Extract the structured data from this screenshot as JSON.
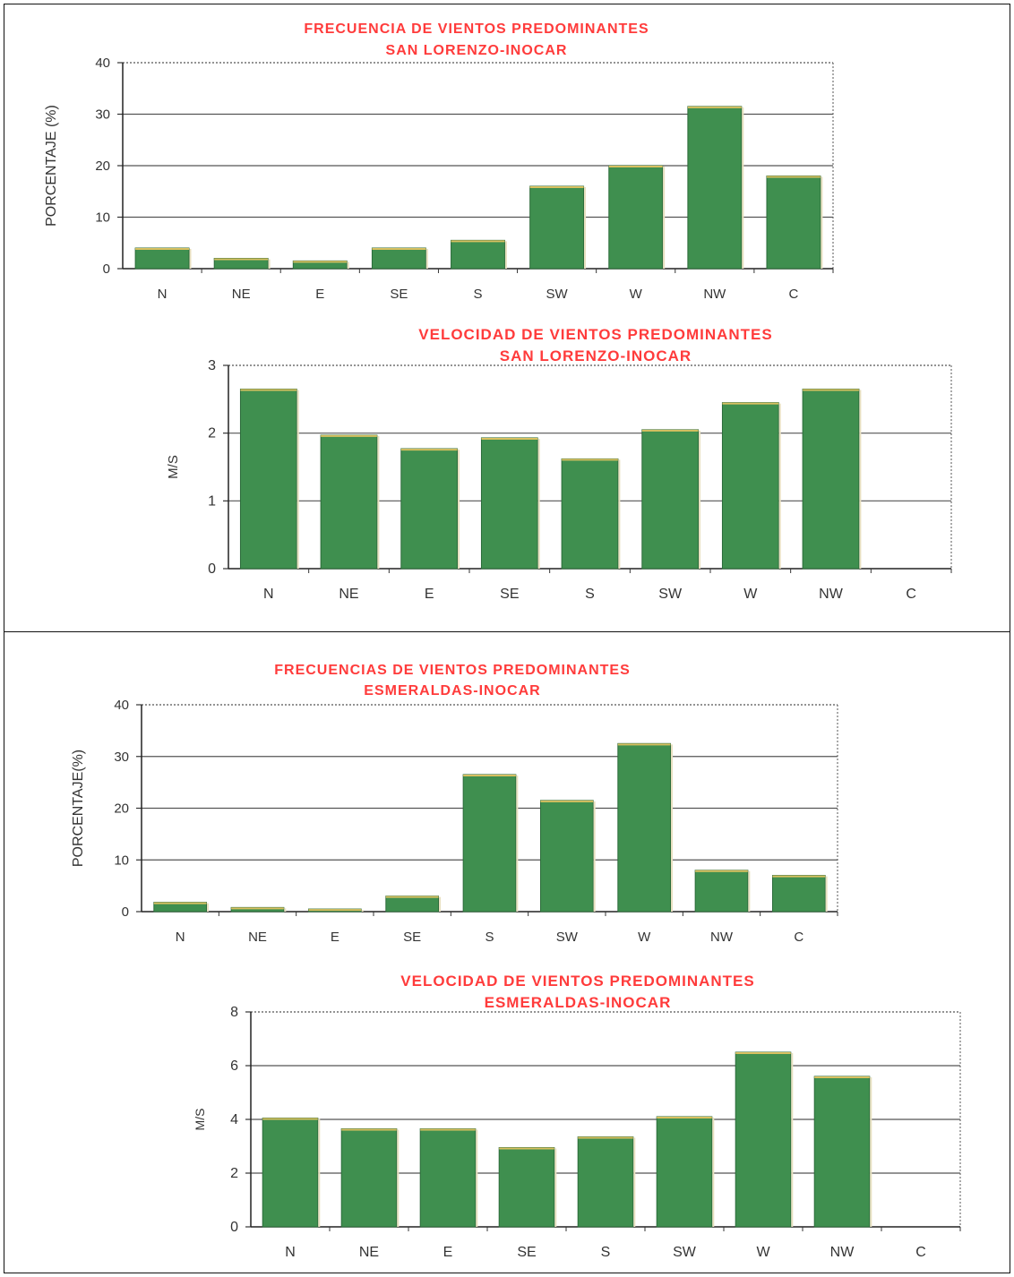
{
  "colors": {
    "bar": "#3f8f4f",
    "bar_edge": "#2c6b3a",
    "bar_highlight": "#d8c060",
    "title": "#ff3b3b",
    "grid": "#555555"
  },
  "chart_data": [
    {
      "type": "bar",
      "title": "FRECUENCIA DE VIENTOS PREDOMINANTES",
      "subtitle": "SAN LORENZO-INOCAR",
      "ylabel": "PORCENTAJE (%)",
      "xlabel": "",
      "categories": [
        "N",
        "NE",
        "E",
        "SE",
        "S",
        "SW",
        "W",
        "NW",
        "C"
      ],
      "values": [
        4,
        2,
        1.5,
        4,
        5.5,
        16,
        20,
        31.5,
        18
      ],
      "ylim": [
        0,
        40
      ],
      "yticks": [
        "0",
        "10",
        "20",
        "30",
        "40"
      ],
      "grid": true
    },
    {
      "type": "bar",
      "title": "VELOCIDAD DE VIENTOS PREDOMINANTES",
      "subtitle": "SAN LORENZO-INOCAR",
      "ylabel": "M/S",
      "xlabel": "",
      "categories": [
        "N",
        "NE",
        "E",
        "SE",
        "S",
        "SW",
        "W",
        "NW",
        "C"
      ],
      "values": [
        2.65,
        1.97,
        1.77,
        1.93,
        1.62,
        2.05,
        2.45,
        2.65,
        0
      ],
      "ylim": [
        0,
        3
      ],
      "yticks": [
        "0",
        "1",
        "2",
        "3"
      ],
      "grid": true
    },
    {
      "type": "bar",
      "title": "FRECUENCIAS DE VIENTOS PREDOMINANTES",
      "subtitle": "ESMERALDAS-INOCAR",
      "ylabel": "PORCENTAJE(%)",
      "xlabel": "",
      "categories": [
        "N",
        "NE",
        "E",
        "SE",
        "S",
        "SW",
        "W",
        "NW",
        "C"
      ],
      "values": [
        1.8,
        0.8,
        0.5,
        3,
        26.5,
        21.5,
        32.5,
        8,
        7
      ],
      "ylim": [
        0,
        40
      ],
      "yticks": [
        "0",
        "10",
        "20",
        "30",
        "40"
      ],
      "grid": true
    },
    {
      "type": "bar",
      "title": "VELOCIDAD DE VIENTOS PREDOMINANTES",
      "subtitle": "ESMERALDAS-INOCAR",
      "ylabel": "M/S",
      "xlabel": "",
      "categories": [
        "N",
        "NE",
        "E",
        "SE",
        "S",
        "SW",
        "W",
        "NW",
        "C"
      ],
      "values": [
        4.05,
        3.65,
        3.65,
        2.95,
        3.35,
        4.1,
        6.5,
        5.6,
        0
      ],
      "ylim": [
        0,
        8
      ],
      "yticks": [
        "0",
        "2",
        "4",
        "6",
        "8"
      ],
      "grid": true
    }
  ]
}
